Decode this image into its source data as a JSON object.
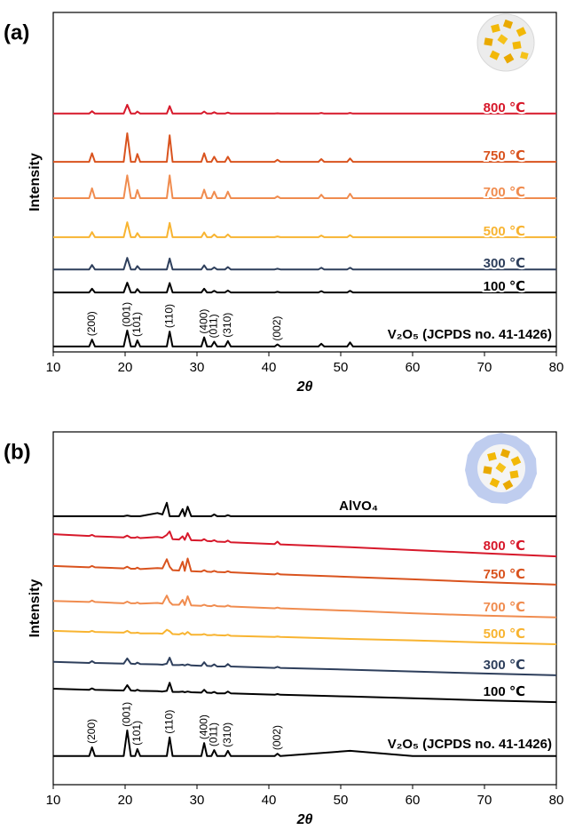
{
  "chart_data": [
    {
      "type": "line",
      "panel_label": "(a)",
      "xlabel": "2θ",
      "ylabel": "Intensity",
      "x": [
        10,
        15.0,
        15.4,
        15.8,
        19.8,
        20.3,
        20.8,
        21.4,
        21.7,
        22.1,
        25.8,
        26.2,
        26.6,
        30.6,
        31.0,
        31.4,
        32.0,
        32.4,
        32.8,
        33.9,
        34.3,
        34.7,
        40.8,
        41.2,
        41.6,
        46.9,
        47.3,
        47.7,
        50.9,
        51.3,
        51.7,
        80
      ],
      "xlim": [
        10,
        80
      ],
      "xticks": [
        10,
        20,
        30,
        40,
        50,
        60,
        70,
        80
      ],
      "ylim": [
        0,
        100
      ],
      "series": [
        {
          "name": "800 ℃",
          "color": "#d7192b",
          "values": [
            70.2,
            70.2,
            70.9,
            70.2,
            70.2,
            72.8,
            70.2,
            70.2,
            70.8,
            70.2,
            70.2,
            72.4,
            70.2,
            70.2,
            70.8,
            70.2,
            70.2,
            70.6,
            70.2,
            70.2,
            70.5,
            70.2,
            70.2,
            70.3,
            70.2,
            70.2,
            70.4,
            70.2,
            70.2,
            70.4,
            70.2,
            70.2
          ]
        },
        {
          "name": "750 ℃",
          "color": "#d9531e",
          "values": [
            56,
            56,
            58.5,
            56,
            56,
            64.4,
            56,
            56,
            58.3,
            56,
            56,
            63.8,
            56,
            56,
            58.5,
            56,
            56,
            57.5,
            56,
            56,
            57.5,
            56,
            56,
            56.6,
            56,
            56,
            56.8,
            56,
            56,
            57.0,
            56,
            56
          ]
        },
        {
          "name": "700 ℃",
          "color": "#f08c4f",
          "values": [
            45.3,
            45.3,
            48.2,
            45.3,
            45.3,
            52,
            45.3,
            45.3,
            47.7,
            45.3,
            45.3,
            52,
            45.3,
            45.3,
            47.8,
            45.3,
            45.3,
            47.2,
            45.3,
            45.3,
            47.2,
            45.3,
            45.3,
            45.8,
            45.3,
            45.3,
            46.3,
            45.3,
            45.3,
            46.6,
            45.3,
            45.3
          ]
        },
        {
          "name": "500 ℃",
          "color": "#f8b431",
          "values": [
            33.8,
            33.8,
            35.3,
            33.8,
            33.8,
            38.2,
            33.8,
            33.8,
            35,
            33.8,
            33.8,
            38,
            33.8,
            33.8,
            35.2,
            33.8,
            33.8,
            34.6,
            33.8,
            33.8,
            34.6,
            33.8,
            33.8,
            34,
            33.8,
            33.8,
            34.3,
            33.8,
            33.8,
            34.4,
            33.8,
            33.8
          ]
        },
        {
          "name": "300 ℃",
          "color": "#2e3f5c",
          "values": [
            24.3,
            24.3,
            25.6,
            24.3,
            24.3,
            27.7,
            24.3,
            24.3,
            25.3,
            24.3,
            24.3,
            27.5,
            24.3,
            24.3,
            25.5,
            24.3,
            24.3,
            24.9,
            24.3,
            24.3,
            25,
            24.3,
            24.3,
            24.5,
            24.3,
            24.3,
            24.8,
            24.3,
            24.3,
            24.8,
            24.3,
            24.3
          ]
        },
        {
          "name": "100 ℃",
          "color": "#000000",
          "values": [
            17.5,
            17.5,
            18.6,
            17.5,
            17.5,
            20.4,
            17.5,
            17.5,
            18.5,
            17.5,
            17.5,
            20.3,
            17.5,
            17.5,
            18.6,
            17.5,
            17.5,
            18,
            17.5,
            17.5,
            18.1,
            17.5,
            17.5,
            17.7,
            17.5,
            17.5,
            17.9,
            17.5,
            17.5,
            18,
            17.5,
            17.5
          ]
        },
        {
          "name": "V₂O₅ (JCPDS no. 41-1426)",
          "color": "#000000",
          "values": [
            1.6,
            1.6,
            3.6,
            1.6,
            1.6,
            6.3,
            1.6,
            1.6,
            3.4,
            1.6,
            1.6,
            6,
            1.6,
            1.6,
            4.3,
            1.6,
            1.6,
            3,
            1.6,
            1.6,
            3.2,
            1.6,
            1.6,
            2.2,
            1.6,
            1.6,
            2.4,
            1.6,
            1.6,
            2.8,
            1.6,
            1.6
          ]
        }
      ],
      "annotations": [
        {
          "text": "(200)",
          "x": 15.4
        },
        {
          "text": "(001)",
          "x": 20.3
        },
        {
          "text": "(101)",
          "x": 21.7
        },
        {
          "text": "(110)",
          "x": 26.2
        },
        {
          "text": "(400)",
          "x": 31.0
        },
        {
          "text": "(011)",
          "x": 32.4
        },
        {
          "text": "(310)",
          "x": 34.3
        },
        {
          "text": "(002)",
          "x": 41.2
        }
      ]
    },
    {
      "type": "line",
      "panel_label": "(b)",
      "xlabel": "2θ",
      "ylabel": "Intensity",
      "x": [
        10,
        15.0,
        15.4,
        15.8,
        19.8,
        20.3,
        20.8,
        21.4,
        21.7,
        22.1,
        24.5,
        25.2,
        25.8,
        26.2,
        26.6,
        27.5,
        28.0,
        28.3,
        28.7,
        29.2,
        30.6,
        31.0,
        31.4,
        32.0,
        32.4,
        32.8,
        33.9,
        34.3,
        34.7,
        40.8,
        41.2,
        41.6,
        51.3,
        60,
        70,
        80
      ],
      "xlim": [
        10,
        80
      ],
      "xticks": [
        10,
        20,
        30,
        40,
        50,
        60,
        70,
        80
      ],
      "ylim": [
        0,
        100
      ],
      "series": [
        {
          "name": "AlVO₄",
          "color": "#000000",
          "values": [
            76.1,
            76.1,
            76.1,
            76.1,
            76.1,
            76.3,
            76.1,
            76.1,
            76.1,
            76.1,
            77.0,
            76.6,
            79.9,
            76.1,
            76.1,
            76.1,
            78.1,
            76.1,
            78.8,
            76.1,
            76.1,
            76.1,
            76.1,
            76.1,
            76.6,
            76.1,
            76.1,
            76.4,
            76.1,
            76.1,
            76.1,
            76.1,
            76.1,
            76.1,
            76.1,
            76.1
          ]
        },
        {
          "name": "800 ℃",
          "color": "#d7192b",
          "values": [
            71.0,
            70.5,
            70.8,
            70.4,
            70.1,
            70.6,
            70.0,
            70.0,
            70.2,
            69.9,
            70.2,
            70.0,
            70.8,
            71.8,
            69.6,
            69.5,
            70.4,
            69.4,
            71.3,
            69.3,
            69.2,
            69.6,
            69.1,
            69.0,
            69.3,
            68.9,
            68.8,
            69.2,
            68.7,
            68.2,
            68.9,
            68.1,
            67.3,
            66.5,
            65.6,
            64.7
          ]
        },
        {
          "name": "750 ℃",
          "color": "#d9531e",
          "values": [
            62.0,
            61.6,
            62.0,
            61.6,
            61.3,
            61.8,
            61.2,
            61.2,
            61.5,
            61.1,
            61.4,
            61.3,
            63.9,
            61.8,
            60.8,
            60.7,
            63.2,
            60.6,
            64.1,
            60.5,
            60.4,
            60.8,
            60.4,
            60.3,
            60.6,
            60.3,
            60.2,
            60.5,
            60.2,
            59.6,
            59.9,
            59.6,
            58.9,
            58.2,
            57.4,
            56.7
          ]
        },
        {
          "name": "700 ℃",
          "color": "#f08c4f",
          "values": [
            52.1,
            51.8,
            52.2,
            51.8,
            51.4,
            51.9,
            51.4,
            51.4,
            51.6,
            51.3,
            51.5,
            51.3,
            53.6,
            51.8,
            51.0,
            51.0,
            52.4,
            50.9,
            53.4,
            50.8,
            50.7,
            51.0,
            50.7,
            50.6,
            50.9,
            50.6,
            50.5,
            50.8,
            50.5,
            50.0,
            50.2,
            50.0,
            49.3,
            48.6,
            47.9,
            47.4
          ]
        },
        {
          "name": "500 ℃",
          "color": "#f8b431",
          "values": [
            43.6,
            43.3,
            43.6,
            43.3,
            43.1,
            43.6,
            43.0,
            43.0,
            43.1,
            42.9,
            42.9,
            42.8,
            43.9,
            43.5,
            42.7,
            42.6,
            43.0,
            42.6,
            43.3,
            42.5,
            42.5,
            42.7,
            42.4,
            42.4,
            42.5,
            42.4,
            42.3,
            42.5,
            42.2,
            41.9,
            42.0,
            41.9,
            41.3,
            40.9,
            40.3,
            39.8
          ]
        },
        {
          "name": "300 ℃",
          "color": "#2e3f5c",
          "values": [
            34.8,
            34.5,
            35.0,
            34.5,
            34.3,
            35.8,
            34.3,
            34.2,
            34.6,
            34.2,
            34.1,
            34.0,
            34.3,
            36.0,
            33.9,
            33.9,
            34.0,
            33.8,
            34.1,
            33.8,
            33.7,
            34.7,
            33.7,
            33.6,
            34.1,
            33.5,
            33.5,
            34.2,
            33.5,
            33.1,
            33.4,
            33.1,
            32.6,
            32.1,
            31.5,
            31.0
          ]
        },
        {
          "name": "100 ℃",
          "color": "#000000",
          "values": [
            27.2,
            26.9,
            27.3,
            26.9,
            26.7,
            28.2,
            26.7,
            26.6,
            26.9,
            26.6,
            26.5,
            26.4,
            26.6,
            28.9,
            26.3,
            26.3,
            26.4,
            26.2,
            26.4,
            26.2,
            26.1,
            26.9,
            26.1,
            26.0,
            26.3,
            25.9,
            25.9,
            26.4,
            25.9,
            25.5,
            25.7,
            25.5,
            25.0,
            24.5,
            23.9,
            23.4
          ]
        },
        {
          "name": "V₂O₅ (JCPDS no. 41-1426)",
          "color": "#000000",
          "values": [
            8.1,
            8.1,
            10.6,
            8.1,
            8.1,
            15.4,
            8.1,
            8.1,
            10.1,
            8.1,
            8.1,
            8.1,
            8.1,
            13.4,
            8.1,
            8.1,
            8.1,
            8.1,
            8.1,
            8.1,
            8.1,
            11.8,
            8.1,
            8.1,
            9.8,
            8.1,
            8.1,
            9.6,
            8.1,
            8.1,
            8.8,
            8.1,
            9.6,
            8.1,
            8.1,
            8.1
          ]
        }
      ],
      "annotations": [
        {
          "text": "(200)",
          "x": 15.4
        },
        {
          "text": "(001)",
          "x": 20.3
        },
        {
          "text": "(101)",
          "x": 21.7
        },
        {
          "text": "(110)",
          "x": 26.2
        },
        {
          "text": "(400)",
          "x": 31.0
        },
        {
          "text": "(011)",
          "x": 32.4
        },
        {
          "text": "(310)",
          "x": 34.3
        },
        {
          "text": "(002)",
          "x": 41.2
        }
      ]
    }
  ]
}
